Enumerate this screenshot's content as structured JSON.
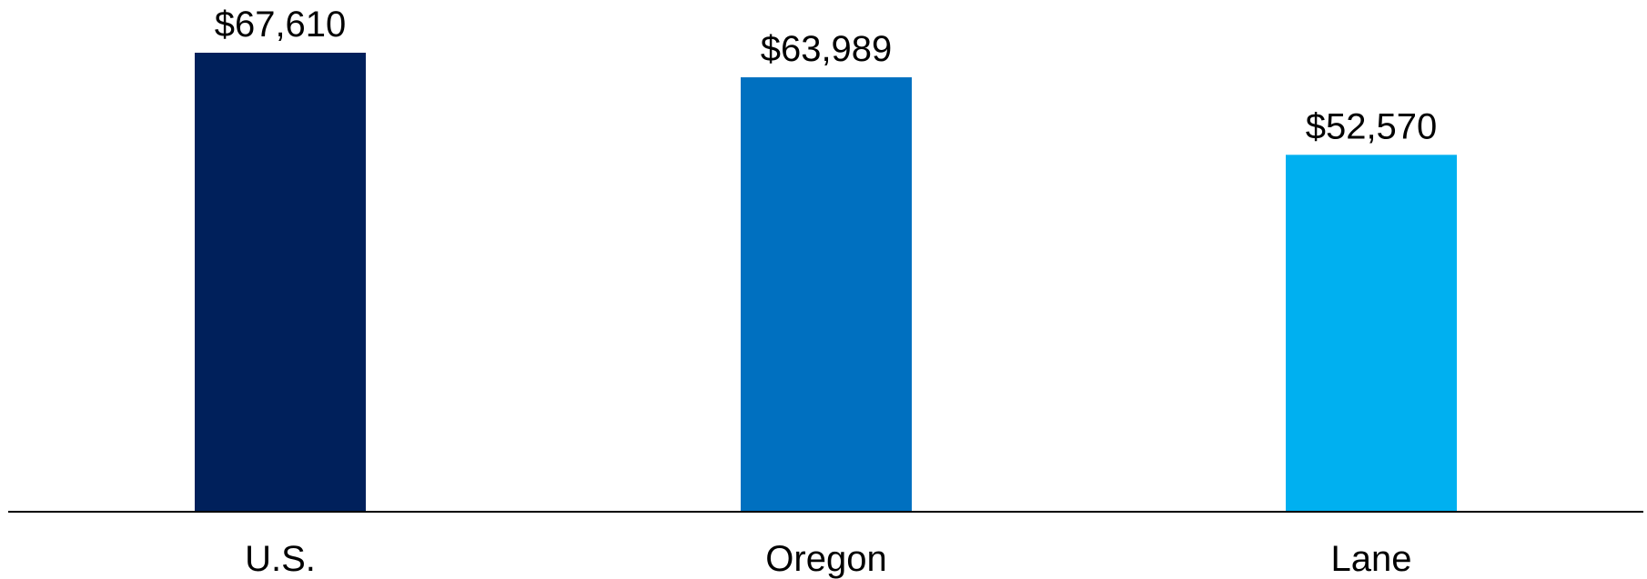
{
  "chart_data": {
    "type": "bar",
    "categories": [
      "U.S.",
      "Oregon",
      "Lane"
    ],
    "values": [
      67610,
      63989,
      52570
    ],
    "data_labels": [
      "$67,610",
      "$63,989",
      "$52,570"
    ],
    "colors": [
      "#00205B",
      "#0070C0",
      "#00B0F0"
    ],
    "title": "",
    "xlabel": "",
    "ylabel": "",
    "ylim": [
      0,
      70000
    ],
    "grid": false,
    "legend": "none",
    "axis_color": "#000000"
  }
}
